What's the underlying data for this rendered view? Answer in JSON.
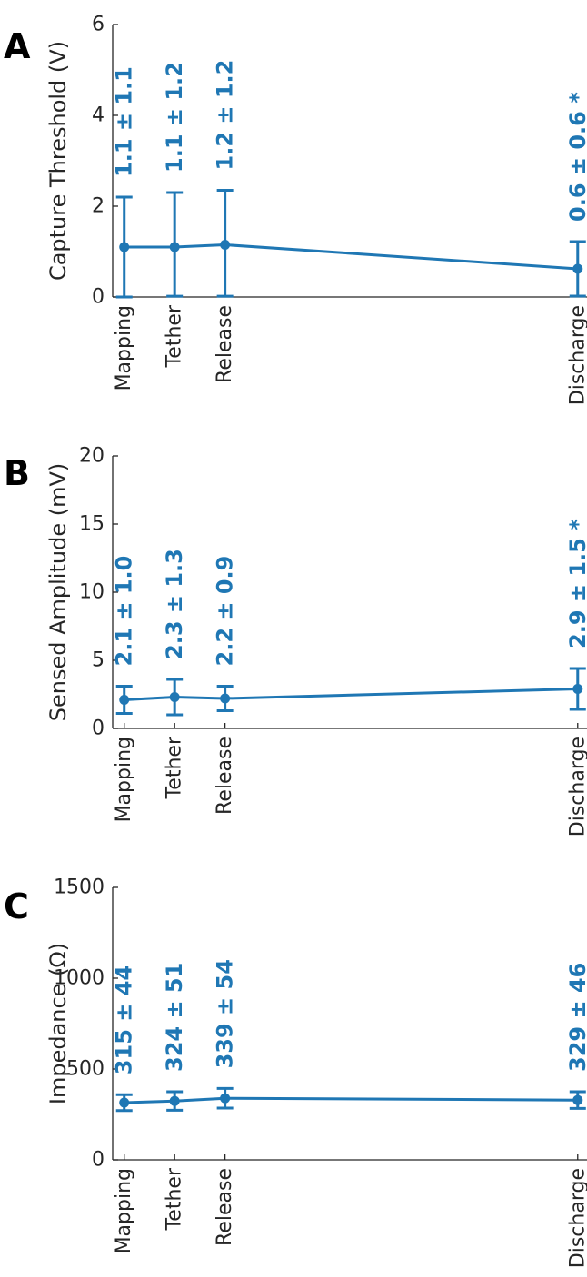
{
  "colors": {
    "series": "#1f77b4",
    "axis": "#262626"
  },
  "chart_data": [
    {
      "panel": "A",
      "type": "line",
      "categories": [
        "Mapping",
        "Tether",
        "Release",
        "Discharge"
      ],
      "x": [
        1,
        2,
        3,
        10
      ],
      "values": [
        1.1,
        1.1,
        1.15,
        0.62
      ],
      "error": [
        1.1,
        1.2,
        1.2,
        0.6
      ],
      "annotations": [
        "1.1 ± 1.1",
        "1.1 ± 1.2",
        "1.2 ± 1.2",
        "0.6 ± 0.6 *"
      ],
      "ylabel": "Capture Threshold (V)",
      "ylim": [
        0,
        6
      ],
      "yticks": [
        "0",
        "2",
        "4",
        "6"
      ],
      "ytick_values": [
        0,
        2,
        4,
        6
      ]
    },
    {
      "panel": "B",
      "type": "line",
      "categories": [
        "Mapping",
        "Tether",
        "Release",
        "Discharge"
      ],
      "x": [
        1,
        2,
        3,
        10
      ],
      "values": [
        2.1,
        2.3,
        2.2,
        2.9
      ],
      "error": [
        1.0,
        1.3,
        0.9,
        1.5
      ],
      "annotations": [
        "2.1 ± 1.0",
        "2.3 ± 1.3",
        "2.2 ± 0.9",
        "2.9 ± 1.5 *"
      ],
      "ylabel": "Sensed Amplitude (mV)",
      "ylim": [
        0,
        20
      ],
      "yticks": [
        "0",
        "5",
        "10",
        "15",
        "20"
      ],
      "ytick_values": [
        0,
        5,
        10,
        15,
        20
      ]
    },
    {
      "panel": "C",
      "type": "line",
      "categories": [
        "Mapping",
        "Tether",
        "Release",
        "Discharge"
      ],
      "x": [
        1,
        2,
        3,
        10
      ],
      "values": [
        315,
        324,
        339,
        329
      ],
      "error": [
        44,
        51,
        54,
        46
      ],
      "annotations": [
        "315 ± 44",
        "324 ± 51",
        "339 ± 54",
        "329 ± 46"
      ],
      "ylabel": "Impedance (Ω)",
      "ylim": [
        0,
        1500
      ],
      "yticks": [
        "0",
        "500",
        "1000",
        "1500"
      ],
      "ytick_values": [
        0,
        500,
        1000,
        1500
      ]
    }
  ]
}
